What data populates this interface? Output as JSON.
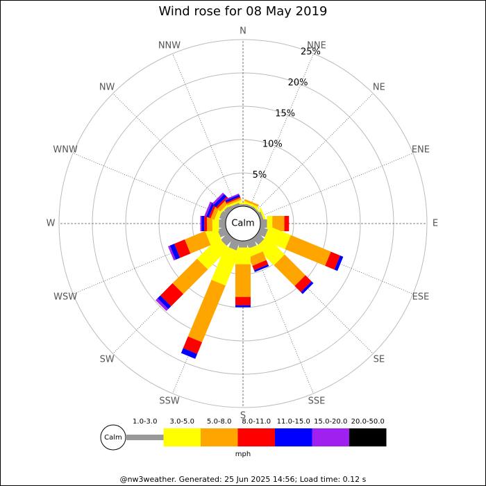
{
  "chart_data": {
    "type": "windrose",
    "title": "Wind rose for 08 May 2019",
    "categories": [
      "N",
      "NNE",
      "NE",
      "ENE",
      "E",
      "ESE",
      "SE",
      "SSE",
      "S",
      "SSW",
      "SW",
      "WSW",
      "W",
      "WNW",
      "NW",
      "NNW"
    ],
    "center_label": "Calm",
    "rlim": [
      0,
      25
    ],
    "rticks": [
      {
        "value": 5,
        "label": "5%"
      },
      {
        "value": 10,
        "label": "10%"
      },
      {
        "value": 15,
        "label": "15%"
      },
      {
        "value": 20,
        "label": "20%"
      },
      {
        "value": 25,
        "label": "25%"
      }
    ],
    "legend_unit": "mph",
    "series": [
      {
        "name": "1.0-3.0",
        "color": "#999999",
        "values": [
          0.3,
          0.3,
          0.3,
          0.5,
          1.0,
          1.2,
          1.3,
          1.2,
          1.0,
          1.5,
          1.5,
          1.3,
          1.0,
          1.0,
          0.8,
          0.5
        ]
      },
      {
        "name": "3.0-5.0",
        "color": "#ffff00",
        "values": [
          0.2,
          0.3,
          0.2,
          0.3,
          0.8,
          3.5,
          3.8,
          1.2,
          2.5,
          5.5,
          4.5,
          1.8,
          1.0,
          0.6,
          0.3,
          0.3
        ]
      },
      {
        "name": "5.0-8.0",
        "color": "#ffa500",
        "values": [
          0,
          0.3,
          0,
          0,
          1.8,
          6.5,
          4.4,
          1.4,
          4.9,
          9.2,
          5.2,
          3.3,
          0.8,
          0.6,
          0.6,
          0.3
        ]
      },
      {
        "name": "8.0-11.0",
        "color": "#ff0000",
        "values": [
          0,
          0,
          0,
          0,
          0.7,
          1.5,
          1.3,
          0.7,
          1.25,
          1.9,
          2.6,
          1.7,
          0.4,
          0.3,
          0.3,
          0.2
        ]
      },
      {
        "name": "11.0-15.0",
        "color": "#0000ff",
        "values": [
          0,
          0,
          0,
          0,
          0,
          0.5,
          0.4,
          0.3,
          0.3,
          0.8,
          0.6,
          0.7,
          0.4,
          0.4,
          0.5,
          0.3
        ]
      },
      {
        "name": "15.0-20.0",
        "color": "#a020f0",
        "values": [
          0,
          0,
          0,
          0,
          0,
          0,
          0,
          0,
          0,
          0,
          0.4,
          0.3,
          0.2,
          0.3,
          0.3,
          0.2
        ]
      },
      {
        "name": "20.0-50.0",
        "color": "#000000",
        "values": [
          0,
          0,
          0,
          0,
          0,
          0,
          0,
          0,
          0,
          0,
          0,
          0,
          0,
          0,
          0,
          0
        ]
      }
    ]
  },
  "footer": "@nw3weather. Generated: 25 Jun 2025 14:56; Load time: 0.12 s"
}
